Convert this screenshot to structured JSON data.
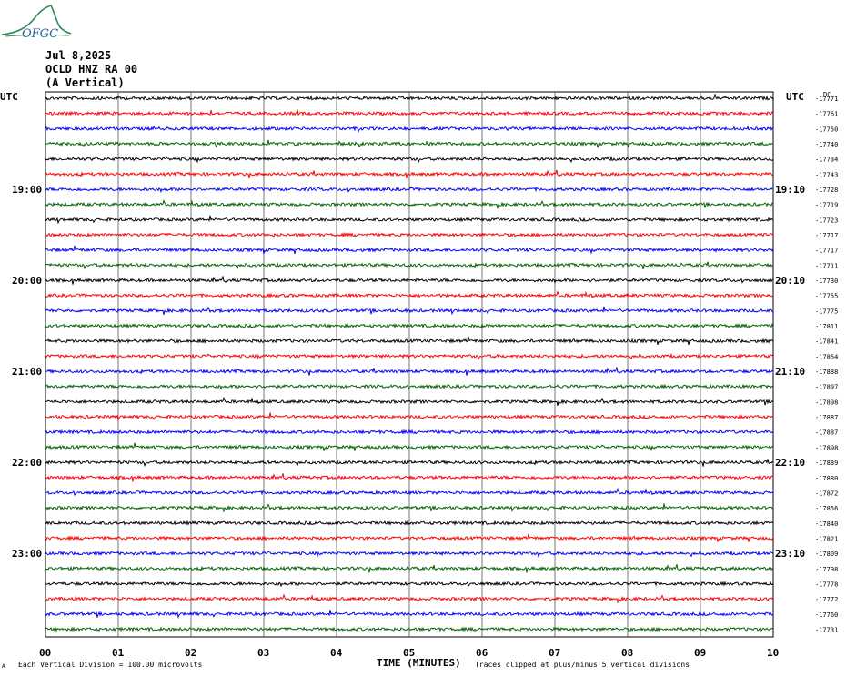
{
  "header": {
    "logo_text": "OFGC",
    "date": "Jul 8,2025",
    "station": "OCLD HNZ RA 00",
    "component": "(A Vertical)"
  },
  "left_axis_label": "UTC",
  "right_axis_label": "UTC",
  "right_column_unit": "DC",
  "left_time_labels": [
    "19:00",
    "20:00",
    "21:00",
    "22:00",
    "23:00"
  ],
  "right_time_labels": [
    "19:10",
    "20:10",
    "21:10",
    "22:10",
    "23:10"
  ],
  "footer": {
    "scale_prefix": "A",
    "scale_note": "Each Vertical Division =  100.00 microvolts",
    "clip_note": "Traces clipped at plus/minus 5 vertical divisions"
  },
  "chart_data": {
    "type": "line",
    "title": "",
    "xlabel": "TIME (MINUTES)",
    "ylabel": "UTC",
    "x_ticks": [
      "00",
      "01",
      "02",
      "03",
      "04",
      "05",
      "06",
      "07",
      "08",
      "09",
      "10"
    ],
    "xlim": [
      0,
      10
    ],
    "grid": true,
    "trace_colors": [
      "#000000",
      "#ff0000",
      "#0000ff",
      "#006400"
    ],
    "trace_count": 36,
    "dc_offsets": [
      -17771,
      -17761,
      -17750,
      -17740,
      -17734,
      -17743,
      -17728,
      -17719,
      -17723,
      -17717,
      -17717,
      -17711,
      -17730,
      -17755,
      -17775,
      -17811,
      -17841,
      -17854,
      -17888,
      -17897,
      -17898,
      -17887,
      -17887,
      -17898,
      -17889,
      -17880,
      -17872,
      -17856,
      -17840,
      -17821,
      -17809,
      -17798,
      -17778,
      -17772,
      -17760,
      -17731
    ]
  }
}
